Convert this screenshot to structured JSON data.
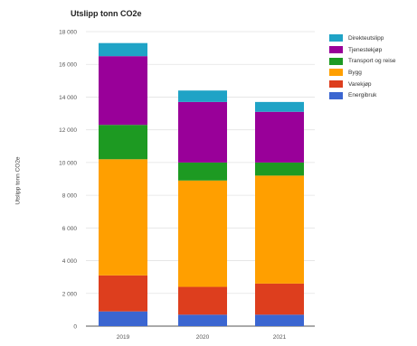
{
  "chart_data": {
    "type": "bar",
    "stacked": true,
    "title": "Utslipp tonn CO2e",
    "ylabel": "Utslipp tonn CO2e",
    "xlabel": "",
    "categories": [
      "2019",
      "2020",
      "2021"
    ],
    "ylim": [
      0,
      18000
    ],
    "yticks": [
      "0",
      "2 000",
      "4 000",
      "6 000",
      "8 000",
      "10 000",
      "12 000",
      "14 000",
      "16 000",
      "18 000"
    ],
    "grid": true,
    "legend_position": "right",
    "series": [
      {
        "name": "Energibruk",
        "color": "#3b66d1",
        "values": [
          900,
          700,
          700
        ]
      },
      {
        "name": "Varekjøp",
        "color": "#dd3e1e",
        "values": [
          2200,
          1700,
          1900
        ]
      },
      {
        "name": "Bygg",
        "color": "#ff9f00",
        "values": [
          7100,
          6500,
          6600
        ]
      },
      {
        "name": "Transport og reise",
        "color": "#1d9a22",
        "values": [
          2100,
          1100,
          800
        ]
      },
      {
        "name": "Tjenestekjøp",
        "color": "#990099",
        "values": [
          4200,
          3700,
          3100
        ]
      },
      {
        "name": "Direkteutslipp",
        "color": "#1fa3c6",
        "values": [
          800,
          700,
          600
        ]
      }
    ]
  }
}
